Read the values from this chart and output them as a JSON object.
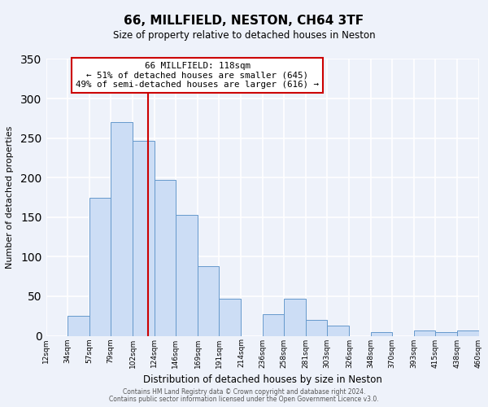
{
  "title": "66, MILLFIELD, NESTON, CH64 3TF",
  "subtitle": "Size of property relative to detached houses in Neston",
  "xlabel": "Distribution of detached houses by size in Neston",
  "ylabel": "Number of detached properties",
  "bar_color_face": "#ccddf5",
  "bar_color_edge": "#6699cc",
  "bin_edges": [
    12,
    34,
    57,
    79,
    102,
    124,
    146,
    169,
    191,
    214,
    236,
    258,
    281,
    303,
    326,
    348,
    370,
    393,
    415,
    438,
    460
  ],
  "bin_labels": [
    "12sqm",
    "34sqm",
    "57sqm",
    "79sqm",
    "102sqm",
    "124sqm",
    "146sqm",
    "169sqm",
    "191sqm",
    "214sqm",
    "236sqm",
    "258sqm",
    "281sqm",
    "303sqm",
    "326sqm",
    "348sqm",
    "370sqm",
    "393sqm",
    "415sqm",
    "438sqm",
    "460sqm"
  ],
  "bar_heights": [
    0,
    25,
    175,
    270,
    247,
    197,
    153,
    88,
    47,
    0,
    27,
    47,
    20,
    13,
    0,
    5,
    0,
    7,
    5,
    7
  ],
  "property_size": 118,
  "vline_color": "#cc0000",
  "annotation_title": "66 MILLFIELD: 118sqm",
  "annotation_line1": "← 51% of detached houses are smaller (645)",
  "annotation_line2": "49% of semi-detached houses are larger (616) →",
  "annotation_box_color": "#ffffff",
  "annotation_box_edgecolor": "#cc0000",
  "ylim": [
    0,
    350
  ],
  "yticks": [
    0,
    50,
    100,
    150,
    200,
    250,
    300,
    350
  ],
  "footer_line1": "Contains HM Land Registry data © Crown copyright and database right 2024.",
  "footer_line2": "Contains public sector information licensed under the Open Government Licence v3.0.",
  "background_color": "#eef2fa",
  "grid_color": "#ffffff"
}
